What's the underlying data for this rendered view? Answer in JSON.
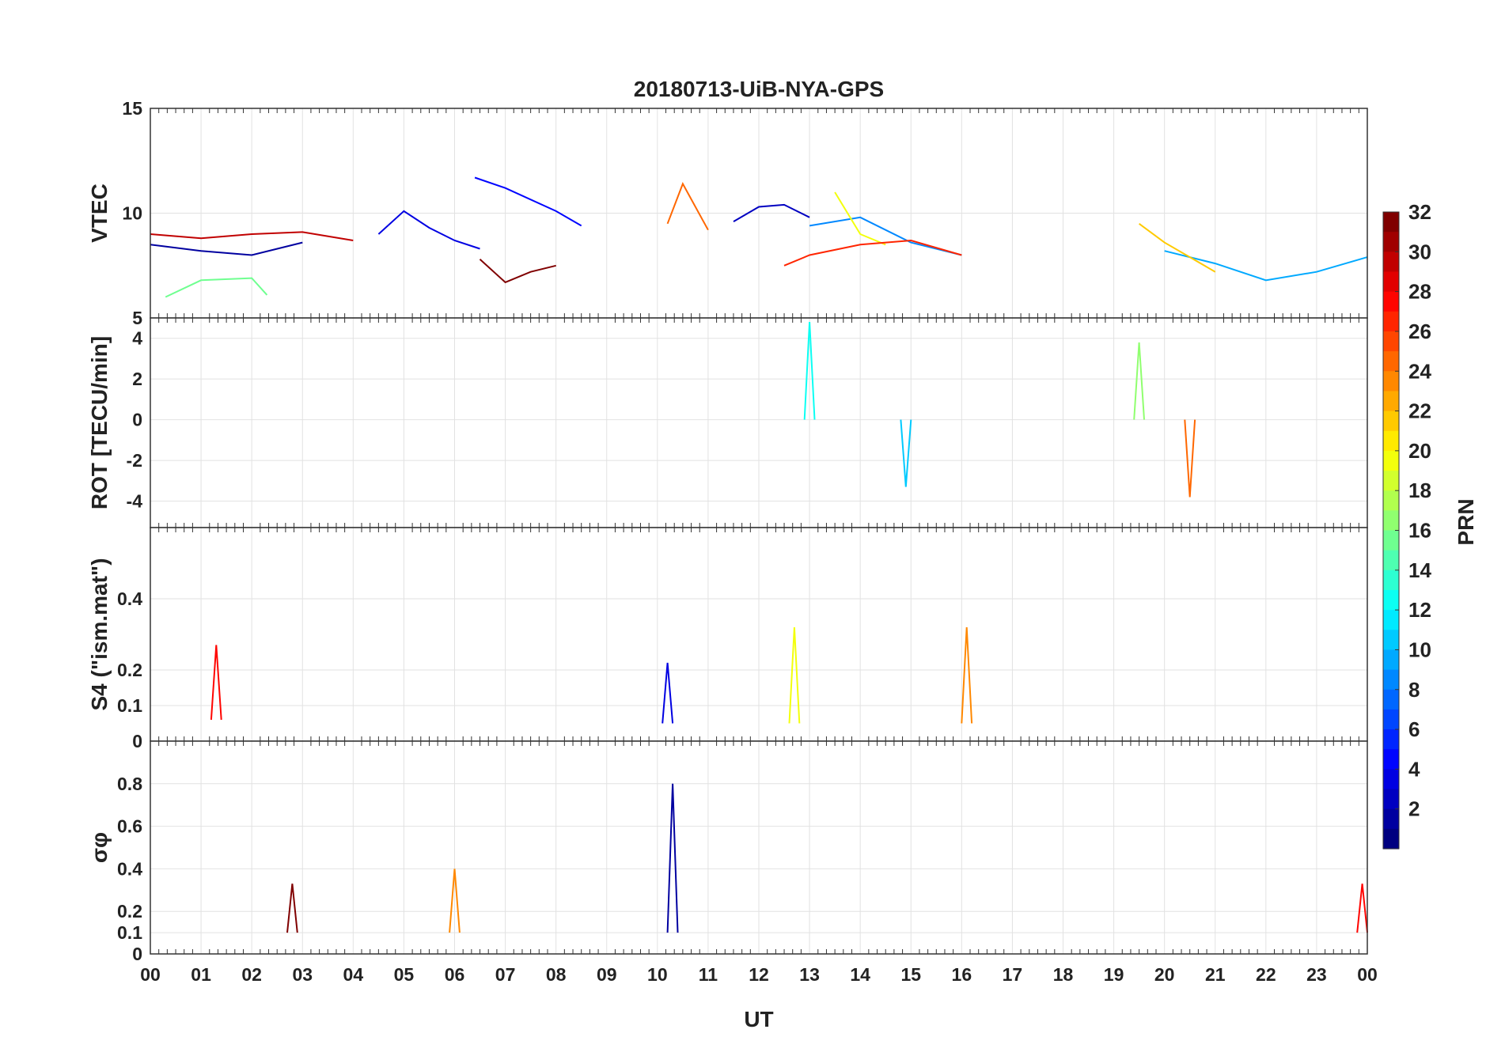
{
  "chart_data": {
    "title": "20180713-UiB-NYA-GPS",
    "xlabel": "UT",
    "x_ticks": [
      "00",
      "01",
      "02",
      "03",
      "04",
      "05",
      "06",
      "07",
      "08",
      "09",
      "10",
      "11",
      "12",
      "13",
      "14",
      "15",
      "16",
      "17",
      "18",
      "19",
      "20",
      "21",
      "22",
      "23",
      "00"
    ],
    "xlim": [
      0,
      24
    ],
    "grid": true,
    "colorbar": {
      "label": "PRN",
      "range": [
        1,
        32
      ],
      "ticks": [
        "2",
        "4",
        "6",
        "8",
        "10",
        "12",
        "14",
        "16",
        "18",
        "20",
        "22",
        "24",
        "26",
        "28",
        "30",
        "32"
      ],
      "colormap": "jet"
    },
    "panels": [
      {
        "type": "line",
        "ylabel": "VTEC",
        "ylim": [
          5,
          15
        ],
        "y_ticks": [
          "5",
          "10",
          "15"
        ],
        "series": [
          {
            "prn": 2,
            "x": [
              0,
              1,
              2,
              3
            ],
            "y": [
              8.5,
              8.2,
              8.0,
              8.6
            ]
          },
          {
            "prn": 4,
            "x": [
              4.5,
              5,
              5.5,
              6,
              6.5
            ],
            "y": [
              9.0,
              10.1,
              9.3,
              8.7,
              8.3
            ]
          },
          {
            "prn": 5,
            "x": [
              6.4,
              7,
              8,
              8.5
            ],
            "y": [
              11.7,
              11.2,
              10.1,
              9.4
            ]
          },
          {
            "prn": 3,
            "x": [
              11.5,
              12,
              12.5,
              13
            ],
            "y": [
              9.6,
              10.3,
              10.4,
              9.8
            ]
          },
          {
            "prn": 9,
            "x": [
              13,
              14,
              15,
              16
            ],
            "y": [
              9.4,
              9.8,
              8.6,
              8.0
            ]
          },
          {
            "prn": 10,
            "x": [
              20,
              21,
              22,
              23,
              24
            ],
            "y": [
              8.2,
              7.6,
              6.8,
              7.2,
              7.9
            ]
          },
          {
            "prn": 16,
            "x": [
              0.3,
              1,
              2,
              2.3
            ],
            "y": [
              6.0,
              6.8,
              6.9,
              6.1
            ]
          },
          {
            "prn": 20,
            "x": [
              13.5,
              14,
              14.5
            ],
            "y": [
              11.0,
              9.0,
              8.5
            ]
          },
          {
            "prn": 22,
            "x": [
              19.5,
              20,
              21
            ],
            "y": [
              9.5,
              8.6,
              7.2
            ]
          },
          {
            "prn": 25,
            "x": [
              10.2,
              10.5,
              11
            ],
            "y": [
              9.5,
              11.4,
              9.2
            ]
          },
          {
            "prn": 27,
            "x": [
              12.5,
              13,
              14,
              15,
              16
            ],
            "y": [
              7.5,
              8.0,
              8.5,
              8.7,
              8.0
            ]
          },
          {
            "prn": 30,
            "x": [
              0,
              1,
              2,
              3,
              4
            ],
            "y": [
              9.0,
              8.8,
              9.0,
              9.1,
              8.7
            ]
          },
          {
            "prn": 32,
            "x": [
              6.5,
              7,
              7.5,
              8
            ],
            "y": [
              7.8,
              6.7,
              7.2,
              7.5
            ]
          }
        ]
      },
      {
        "type": "line",
        "ylabel": "ROT [TECU/min]",
        "ylim": [
          -5.3,
          5
        ],
        "y_ticks": [
          "-4",
          "-2",
          "0",
          "2",
          "4"
        ],
        "series": [
          {
            "prn": 13,
            "x": [
              12.9,
              13.0,
              13.1
            ],
            "y": [
              0.0,
              4.8,
              0.0
            ]
          },
          {
            "prn": 11,
            "x": [
              14.8,
              14.9,
              15.0
            ],
            "y": [
              0.0,
              -3.3,
              0.0
            ]
          },
          {
            "prn": 25,
            "x": [
              20.4,
              20.5,
              20.6
            ],
            "y": [
              0.0,
              -3.8,
              0.0
            ]
          },
          {
            "prn": 17,
            "x": [
              19.4,
              19.5,
              19.6
            ],
            "y": [
              0.0,
              3.8,
              0.0
            ]
          }
        ]
      },
      {
        "type": "line",
        "ylabel": "S4 (\"ism.mat\")",
        "ylim": [
          0,
          0.6
        ],
        "y_ticks": [
          "0",
          "0.1",
          "0.2",
          "0.4"
        ],
        "series": [
          {
            "prn": 20,
            "x": [
              12.6,
              12.7,
              12.8
            ],
            "y": [
              0.05,
              0.32,
              0.05
            ]
          },
          {
            "prn": 24,
            "x": [
              16.0,
              16.1,
              16.2
            ],
            "y": [
              0.05,
              0.32,
              0.05
            ]
          },
          {
            "prn": 28,
            "x": [
              1.2,
              1.3,
              1.4
            ],
            "y": [
              0.06,
              0.27,
              0.06
            ]
          },
          {
            "prn": 4,
            "x": [
              10.1,
              10.2,
              10.3
            ],
            "y": [
              0.05,
              0.22,
              0.05
            ]
          }
        ]
      },
      {
        "type": "line",
        "ylabel": "σφ",
        "ylim": [
          0,
          1
        ],
        "y_ticks": [
          "0",
          "0.1",
          "0.2",
          "0.4",
          "0.6",
          "0.8"
        ],
        "series": [
          {
            "prn": 2,
            "x": [
              10.2,
              10.3,
              10.4
            ],
            "y": [
              0.1,
              0.8,
              0.1
            ]
          },
          {
            "prn": 24,
            "x": [
              5.9,
              6.0,
              6.1
            ],
            "y": [
              0.1,
              0.4,
              0.1
            ]
          },
          {
            "prn": 32,
            "x": [
              2.7,
              2.8,
              2.9
            ],
            "y": [
              0.1,
              0.33,
              0.1
            ]
          },
          {
            "prn": 28,
            "x": [
              23.8,
              23.9,
              24.0
            ],
            "y": [
              0.1,
              0.33,
              0.1
            ]
          }
        ]
      }
    ]
  }
}
